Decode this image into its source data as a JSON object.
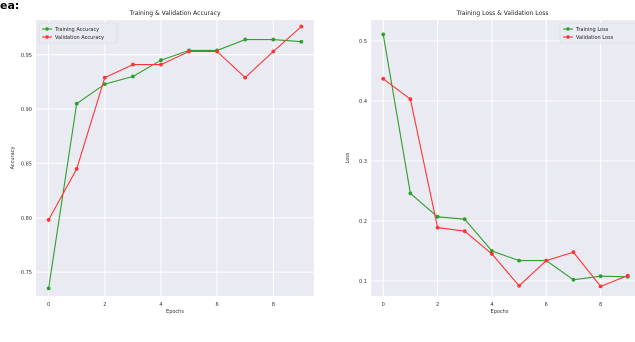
{
  "corner_label": "ea:",
  "chart_data": [
    {
      "type": "line",
      "title": "Training & Validation Accuracy",
      "xlabel": "Epochs",
      "ylabel": "Accuracy",
      "x": [
        0,
        1,
        2,
        3,
        4,
        5,
        6,
        7,
        8,
        9
      ],
      "xticks": [
        0,
        2,
        4,
        6,
        8
      ],
      "yticks": [
        0.75,
        0.8,
        0.85,
        0.9,
        0.95
      ],
      "ylim": [
        0.728,
        0.982
      ],
      "xlim": [
        -0.45,
        9.45
      ],
      "grid": true,
      "legend_position": "top-left",
      "series": [
        {
          "name": "Training Accuracy",
          "color": "#2ca02c",
          "values": [
            0.735,
            0.905,
            0.923,
            0.93,
            0.945,
            0.954,
            0.954,
            0.964,
            0.964,
            0.962
          ]
        },
        {
          "name": "Validation Accuracy",
          "color": "#ff3333",
          "values": [
            0.798,
            0.845,
            0.929,
            0.941,
            0.941,
            0.953,
            0.953,
            0.929,
            0.953,
            0.976
          ]
        }
      ]
    },
    {
      "type": "line",
      "title": "Training Loss & Validation Loss",
      "xlabel": "Epochs",
      "ylabel": "Loss",
      "x": [
        0,
        1,
        2,
        3,
        4,
        5,
        6,
        7,
        8,
        9
      ],
      "xticks": [
        0,
        2,
        4,
        6,
        8
      ],
      "yticks": [
        0.1,
        0.2,
        0.3,
        0.4,
        0.5
      ],
      "ylim": [
        0.075,
        0.535
      ],
      "xlim": [
        -0.45,
        9.45
      ],
      "grid": true,
      "legend_position": "top-right",
      "series": [
        {
          "name": "Training Loss",
          "color": "#2ca02c",
          "values": [
            0.511,
            0.246,
            0.207,
            0.203,
            0.15,
            0.134,
            0.134,
            0.102,
            0.108,
            0.107
          ]
        },
        {
          "name": "Validation Loss",
          "color": "#ff3333",
          "values": [
            0.437,
            0.403,
            0.189,
            0.183,
            0.145,
            0.092,
            0.134,
            0.148,
            0.091,
            0.109
          ]
        }
      ]
    }
  ]
}
